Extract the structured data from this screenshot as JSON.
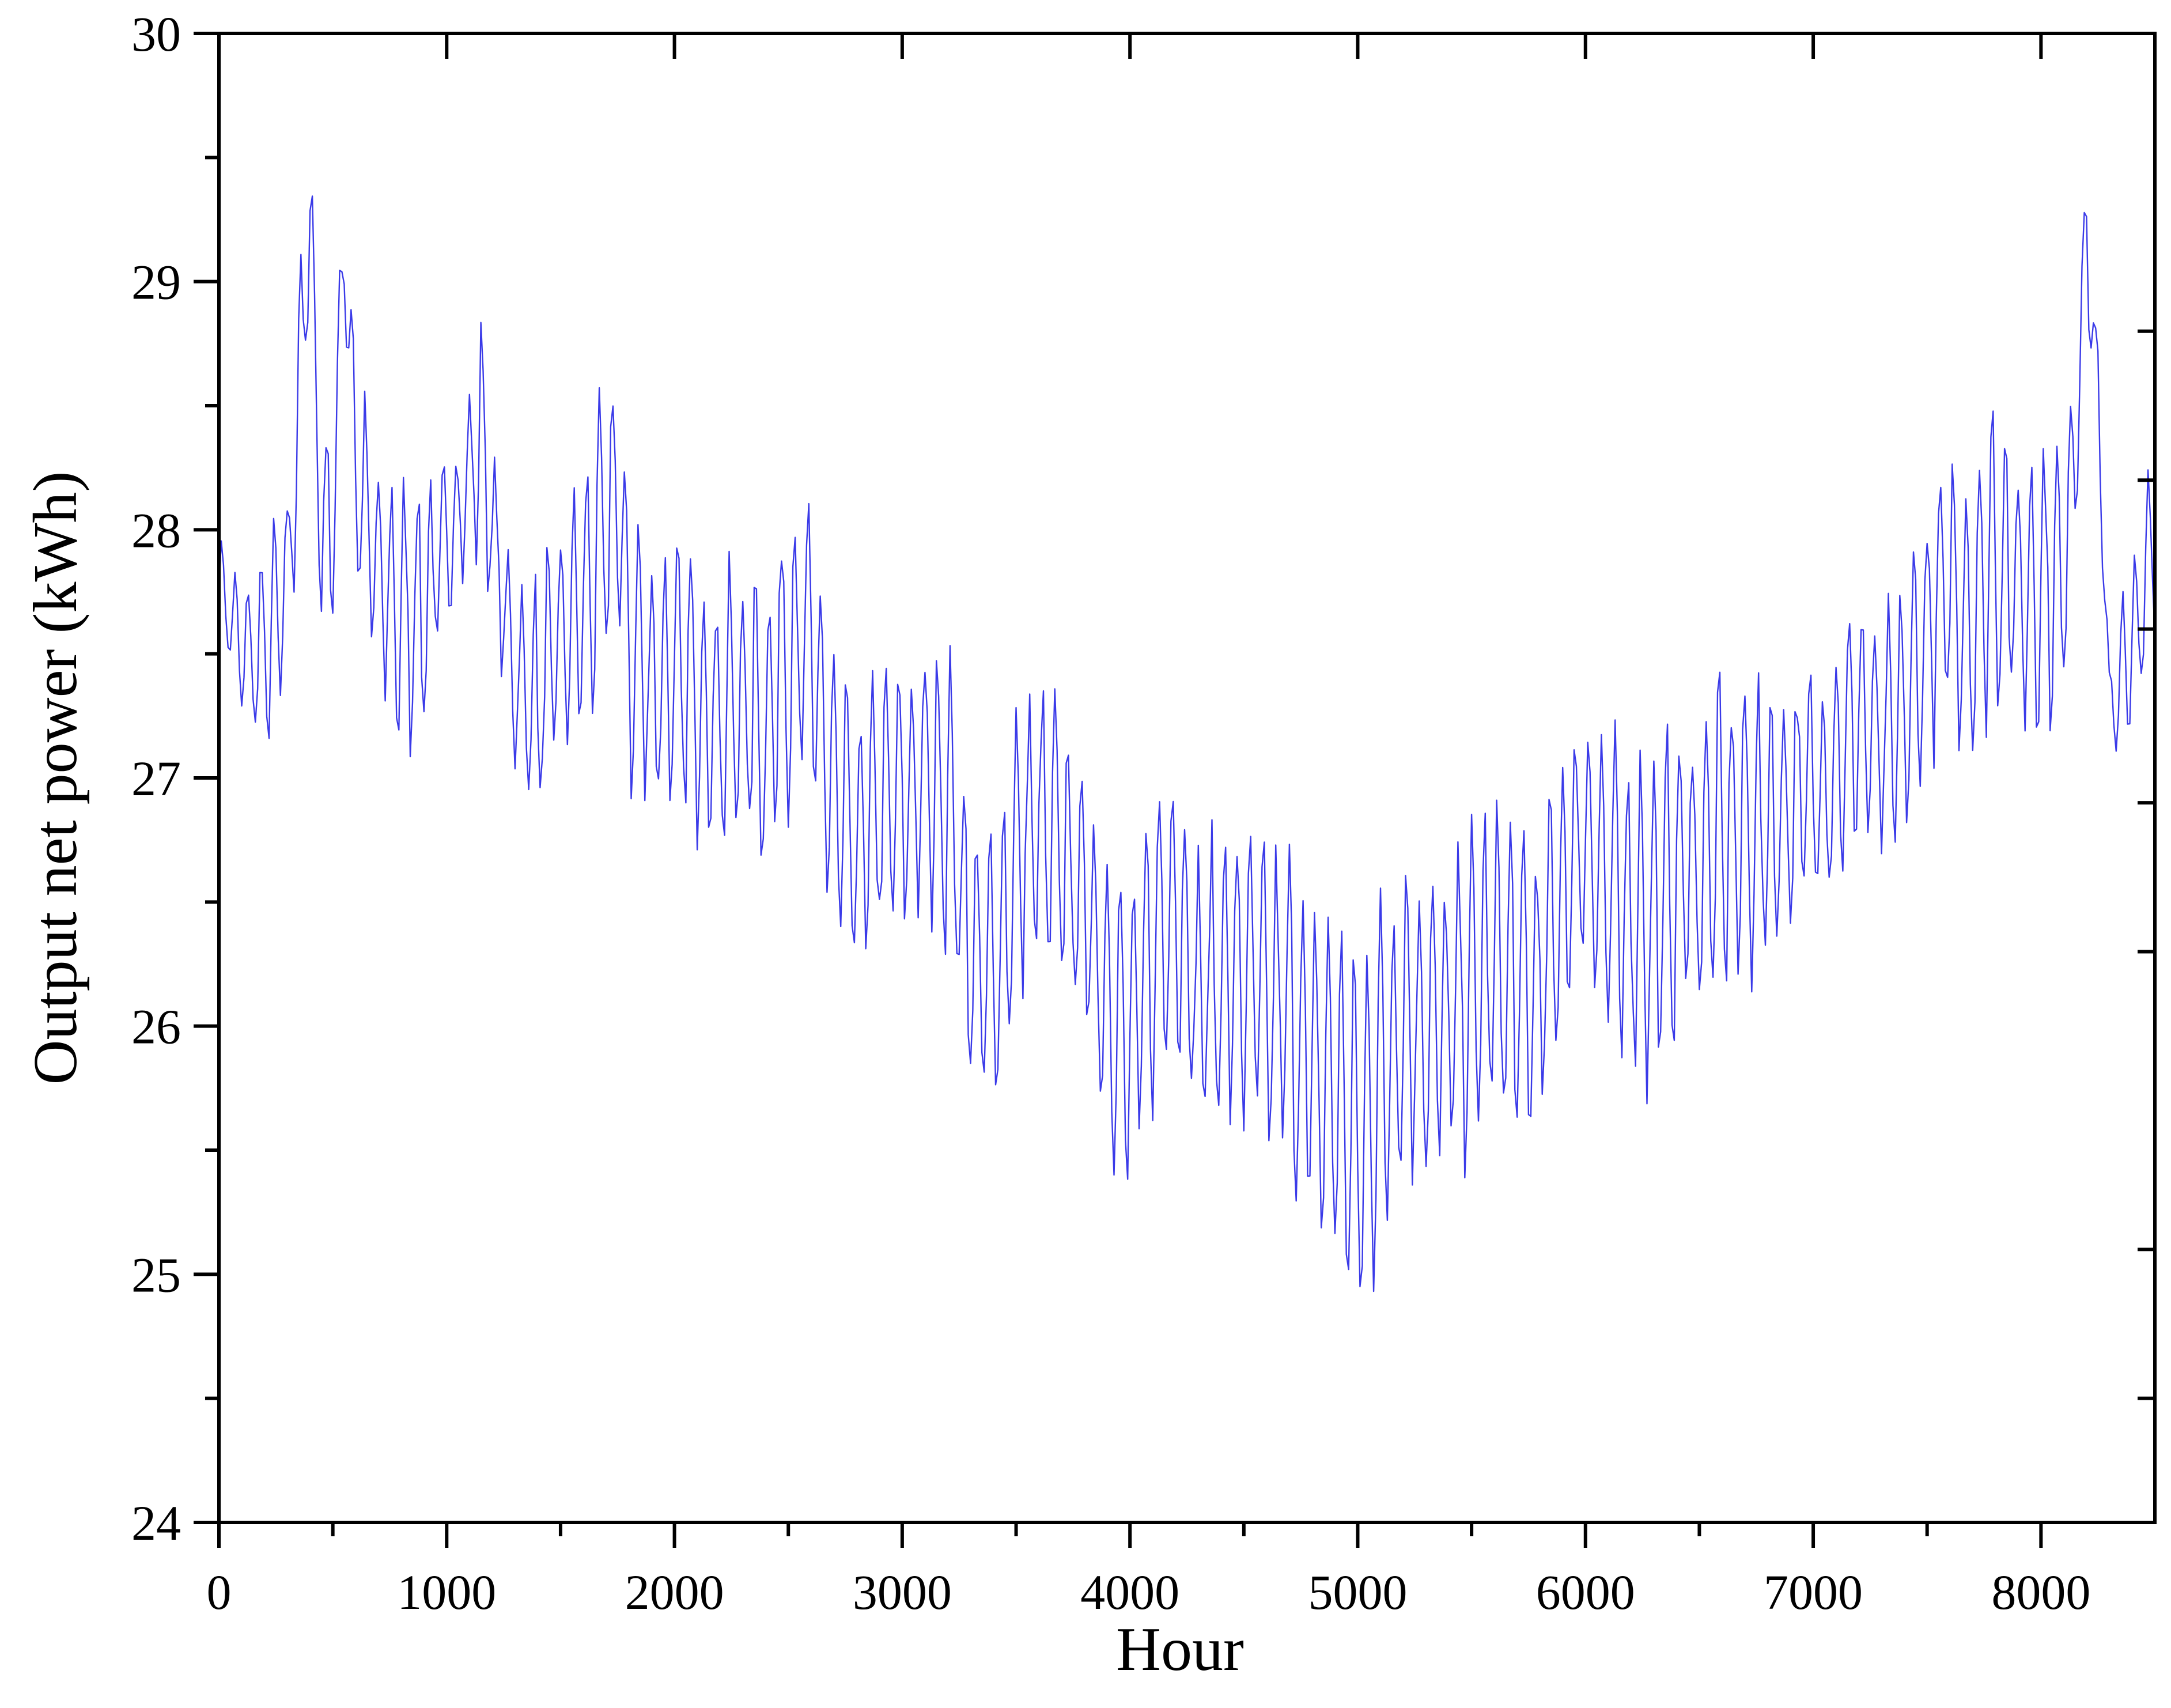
{
  "chart_data": {
    "type": "line",
    "title": "",
    "xlabel": "Hour",
    "ylabel": "Output net power (kWh)",
    "xlim": [
      0,
      8500
    ],
    "ylim": [
      24,
      30
    ],
    "x_ticks": [
      0,
      1000,
      2000,
      3000,
      4000,
      5000,
      6000,
      7000,
      8000
    ],
    "x_minor_step": 500,
    "y_ticks": [
      24,
      25,
      26,
      27,
      28,
      29,
      30
    ],
    "y_minor_step": 0.5,
    "grid": false,
    "legend": "none",
    "line_color": "#3a3ae8",
    "series": [
      {
        "x_start": 0,
        "x_step": 10,
        "envelope": {
          "x": [
            0,
            100,
            200,
            300,
            350,
            400,
            450,
            500,
            550,
            600,
            700,
            800,
            900,
            1000,
            1100,
            1150,
            1200,
            1300,
            1400,
            1500,
            1600,
            1700,
            1750,
            1800,
            1900,
            2000,
            2100,
            2200,
            2300,
            2400,
            2500,
            2600,
            2700,
            2800,
            2900,
            3000,
            3100,
            3200,
            3300,
            3400,
            3500,
            3600,
            3700,
            3800,
            3900,
            4000,
            4100,
            4200,
            4300,
            4400,
            4500,
            4600,
            4700,
            4800,
            4900,
            5000,
            5100,
            5200,
            5300,
            5400,
            5500,
            5600,
            5700,
            5800,
            5900,
            6000,
            6100,
            6200,
            6300,
            6400,
            6500,
            6600,
            6700,
            6800,
            6900,
            7000,
            7100,
            7200,
            7300,
            7400,
            7500,
            7600,
            7700,
            7800,
            7900,
            8000,
            8100,
            8150,
            8200,
            8250,
            8300,
            8400,
            8500
          ],
          "high": [
            28.0,
            27.8,
            28.0,
            28.2,
            29.2,
            29.6,
            28.6,
            28.4,
            29.5,
            28.8,
            28.3,
            28.3,
            28.3,
            28.3,
            28.6,
            29.0,
            28.4,
            27.8,
            27.9,
            28.1,
            28.3,
            28.7,
            28.8,
            28.3,
            28.0,
            28.0,
            28.0,
            27.9,
            28.0,
            27.9,
            28.3,
            28.2,
            27.6,
            27.5,
            27.5,
            27.5,
            27.6,
            27.7,
            27.0,
            26.9,
            27.4,
            27.5,
            27.4,
            27.3,
            26.8,
            26.7,
            27.0,
            27.3,
            26.8,
            26.9,
            26.9,
            26.8,
            26.8,
            26.6,
            26.5,
            26.4,
            26.6,
            26.8,
            26.7,
            26.7,
            26.9,
            27.0,
            26.9,
            26.9,
            27.2,
            27.4,
            27.3,
            27.3,
            27.2,
            27.3,
            27.4,
            27.5,
            27.5,
            27.5,
            27.5,
            27.5,
            27.6,
            27.8,
            27.7,
            27.9,
            28.2,
            28.4,
            28.3,
            28.7,
            28.4,
            28.5,
            28.4,
            28.9,
            29.5,
            28.8,
            27.5,
            28.0,
            28.4
          ],
          "low": [
            27.6,
            27.2,
            27.0,
            27.3,
            27.9,
            28.9,
            27.4,
            27.6,
            28.9,
            27.7,
            27.3,
            27.0,
            27.1,
            27.6,
            27.8,
            27.8,
            27.6,
            27.0,
            26.7,
            27.0,
            27.1,
            27.3,
            27.5,
            26.8,
            26.8,
            26.8,
            26.7,
            26.6,
            26.6,
            26.5,
            26.8,
            26.8,
            26.2,
            25.9,
            26.3,
            26.3,
            26.4,
            26.2,
            25.6,
            25.4,
            26.0,
            26.1,
            26.0,
            25.7,
            25.5,
            25.1,
            25.6,
            25.8,
            25.4,
            25.5,
            25.5,
            25.4,
            25.3,
            25.0,
            25.0,
            24.6,
            25.0,
            25.3,
            25.3,
            25.3,
            25.4,
            25.5,
            25.4,
            25.4,
            25.9,
            26.2,
            25.7,
            25.7,
            25.6,
            25.9,
            25.9,
            26.0,
            26.1,
            26.1,
            26.3,
            26.4,
            26.5,
            26.7,
            26.5,
            26.6,
            27.0,
            27.1,
            27.0,
            27.2,
            27.1,
            27.1,
            27.2,
            27.9,
            28.9,
            28.2,
            27.1,
            27.0,
            27.5
          ]
        },
        "cycle_hours": 24,
        "noise_seed": 7
      }
    ]
  },
  "axes": {
    "x_tick_labels": [
      "0",
      "1000",
      "2000",
      "3000",
      "4000",
      "5000",
      "6000",
      "7000",
      "8000"
    ],
    "y_tick_labels": [
      "24",
      "25",
      "26",
      "27",
      "28",
      "29",
      "30"
    ]
  }
}
